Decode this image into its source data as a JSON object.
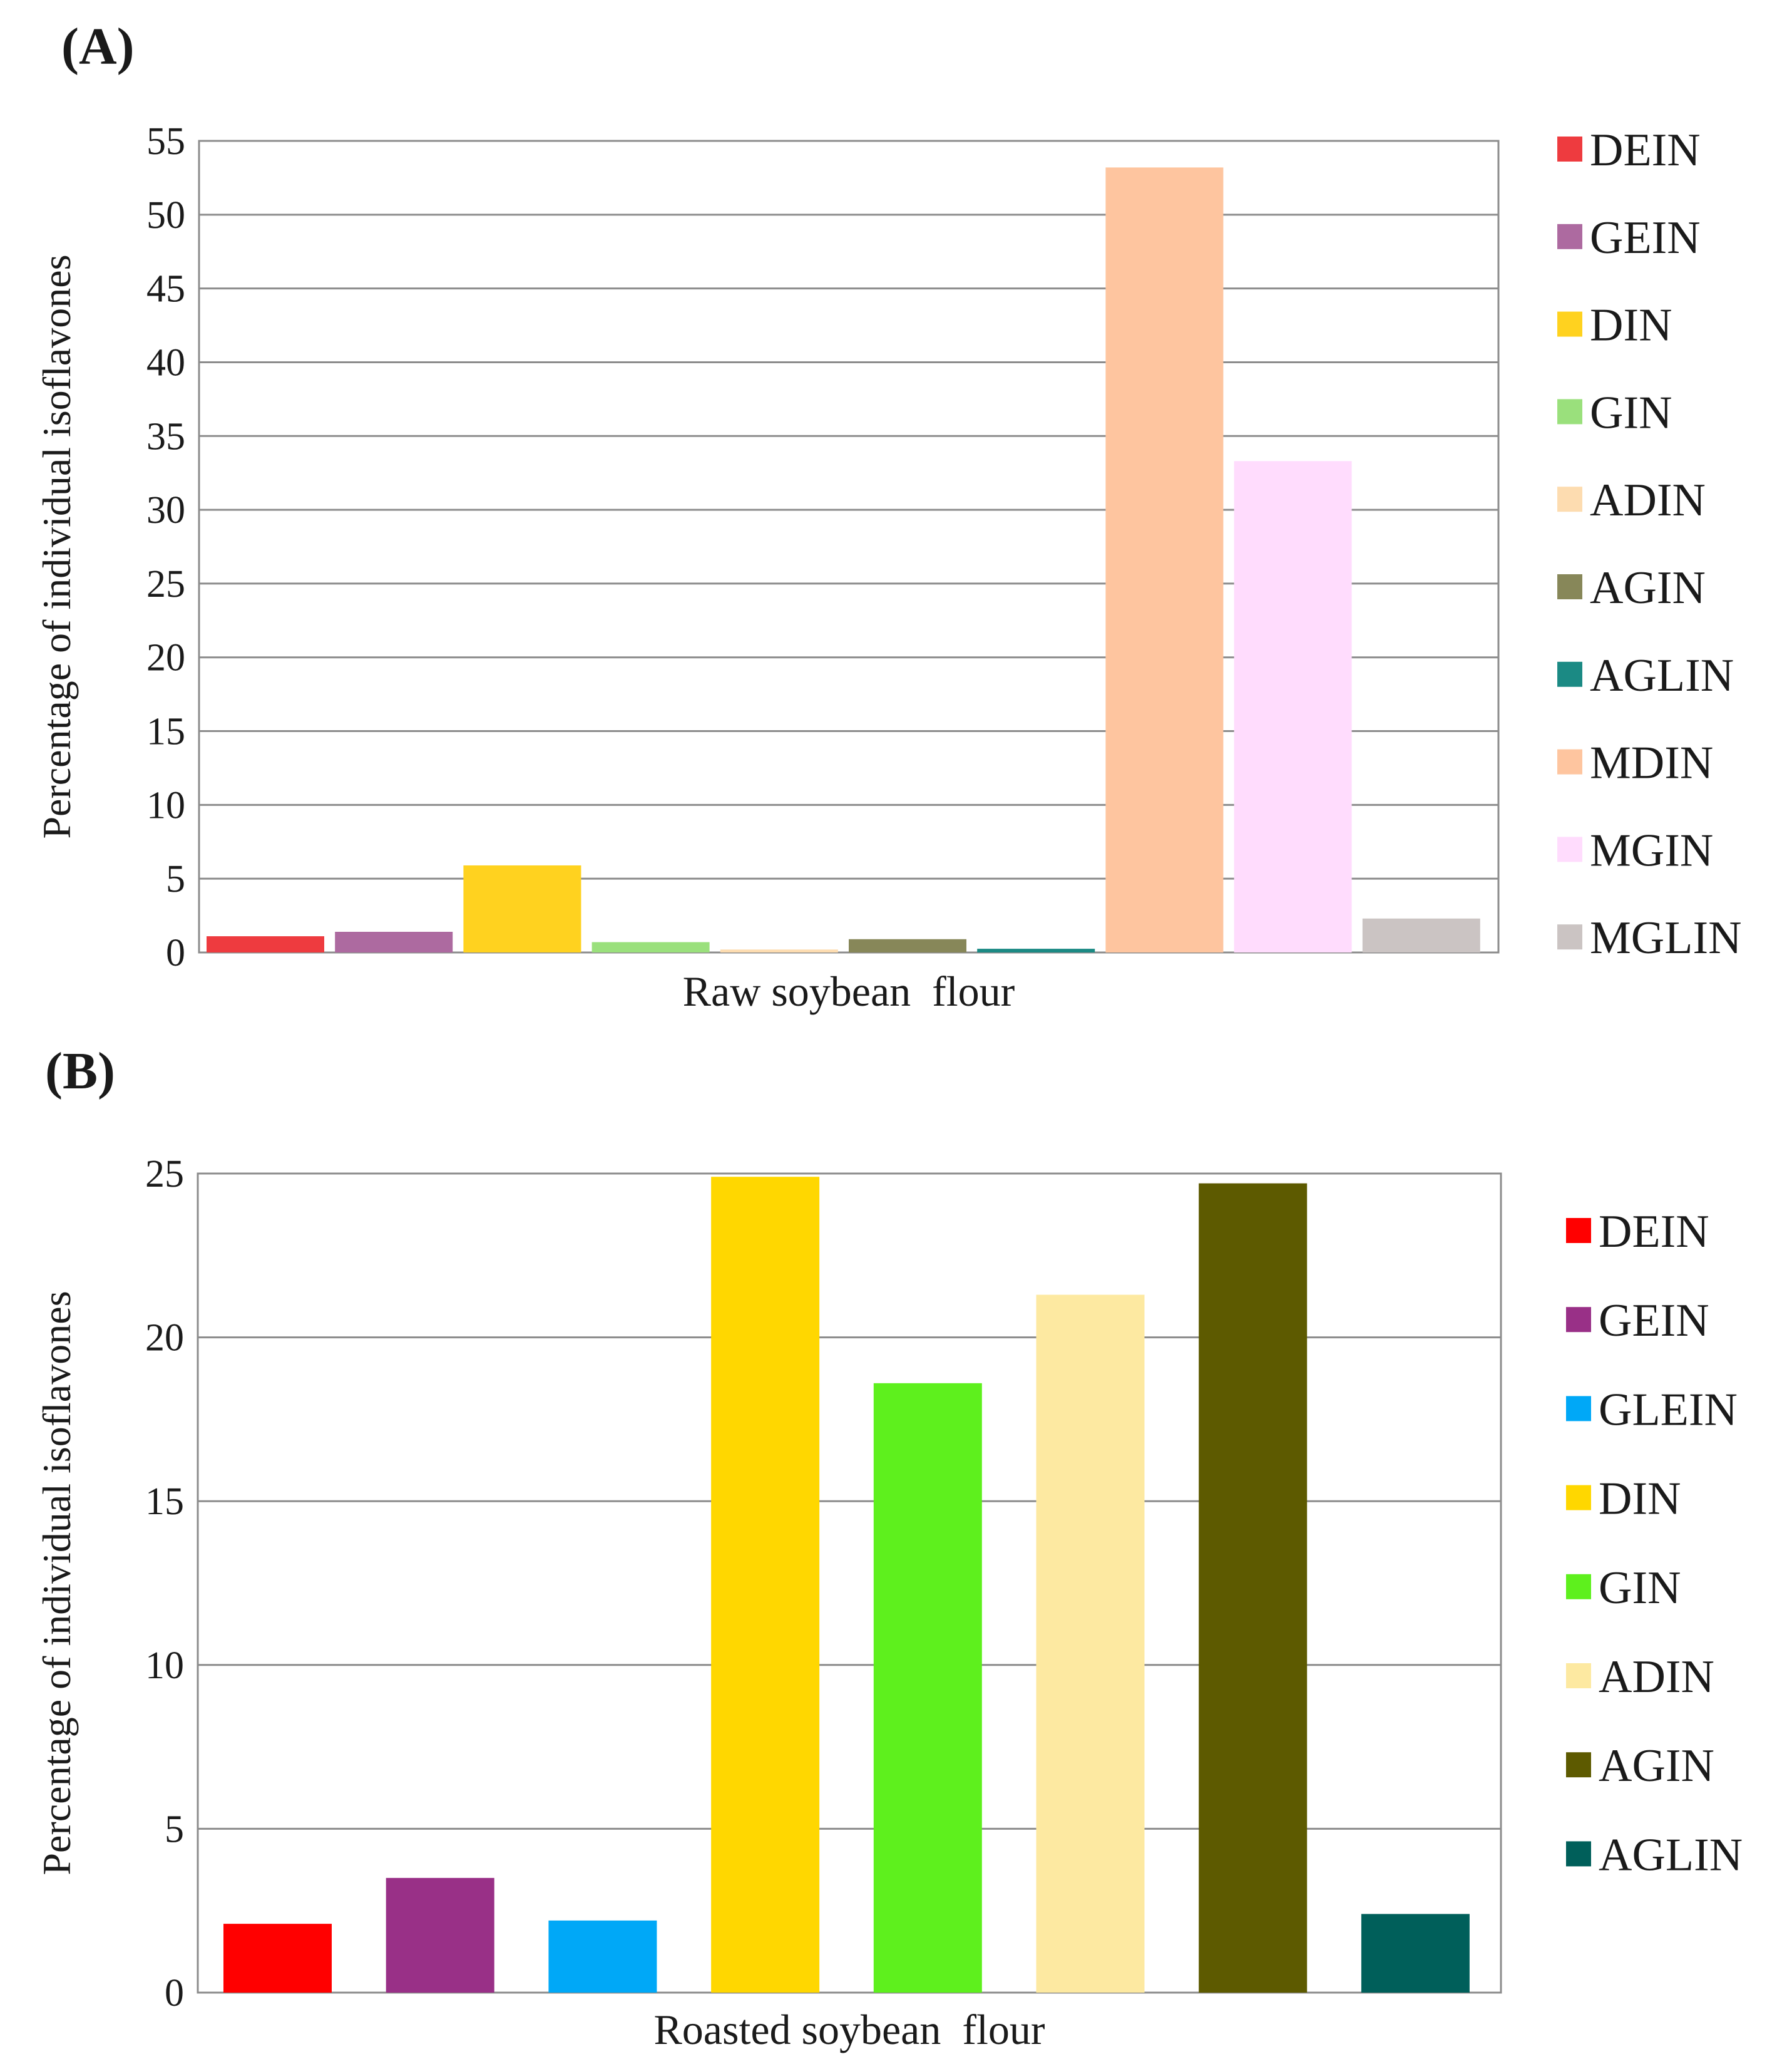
{
  "chart_data": [
    {
      "panel_label": "(A)",
      "type": "bar",
      "category": "Raw soybean  flour",
      "ylabel": "Percentage of individual isoflavones",
      "ylim": [
        0,
        55
      ],
      "yticks": [
        "0",
        "5",
        "10",
        "15",
        "20",
        "25",
        "30",
        "35",
        "40",
        "45",
        "50",
        "55"
      ],
      "grid": true,
      "legend_position": "right",
      "series": [
        {
          "name": "DEIN",
          "value": 1.1,
          "color": "#ee3b3f"
        },
        {
          "name": "GEIN",
          "value": 1.4,
          "color": "#ad6aa0"
        },
        {
          "name": "DIN",
          "value": 5.9,
          "color": "#ffd21f"
        },
        {
          "name": "GIN",
          "value": 0.7,
          "color": "#9ae07c"
        },
        {
          "name": "ADIN",
          "value": 0.2,
          "color": "#fddcb0"
        },
        {
          "name": "AGIN",
          "value": 0.9,
          "color": "#878759"
        },
        {
          "name": "AGLIN",
          "value": 0.25,
          "color": "#1b8a84"
        },
        {
          "name": "MDIN",
          "value": 53.2,
          "color": "#fec59f"
        },
        {
          "name": "MGIN",
          "value": 33.3,
          "color": "#ffdcfd"
        },
        {
          "name": "MGLIN",
          "value": 2.3,
          "color": "#cbc4c3"
        }
      ]
    },
    {
      "panel_label": "(B)",
      "type": "bar",
      "category": "Roasted soybean  flour",
      "ylabel": "Percentage of individual isoflavones",
      "ylim": [
        0,
        25
      ],
      "yticks": [
        "0",
        "5",
        "10",
        "15",
        "20",
        "25"
      ],
      "grid": true,
      "legend_position": "right",
      "series": [
        {
          "name": "DEIN",
          "value": 2.1,
          "color": "#ff0000"
        },
        {
          "name": "GEIN",
          "value": 3.5,
          "color": "#993087"
        },
        {
          "name": "GLEIN",
          "value": 2.2,
          "color": "#00a8f7"
        },
        {
          "name": "DIN",
          "value": 24.9,
          "color": "#ffd700"
        },
        {
          "name": "GIN",
          "value": 18.6,
          "color": "#5ef01d"
        },
        {
          "name": "ADIN",
          "value": 21.3,
          "color": "#fde9a1"
        },
        {
          "name": "AGIN",
          "value": 24.7,
          "color": "#5d5a00"
        },
        {
          "name": "AGLIN",
          "value": 2.4,
          "color": "#005f5a"
        }
      ]
    }
  ]
}
